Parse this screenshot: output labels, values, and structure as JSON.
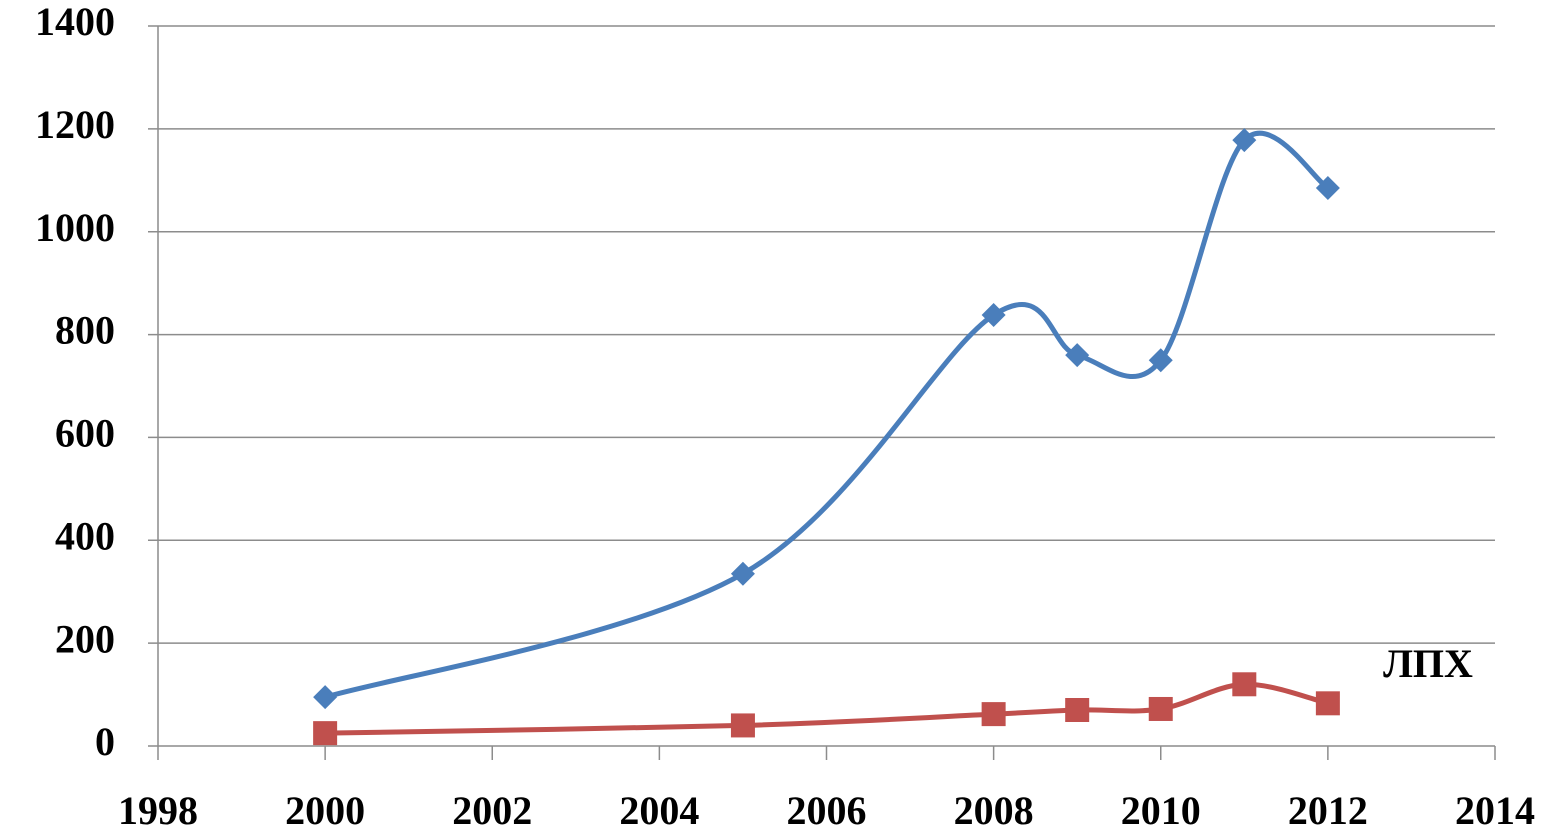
{
  "chart_data": {
    "type": "line",
    "x": [
      2000,
      2005,
      2008,
      2009,
      2010,
      2011,
      2012
    ],
    "series": [
      {
        "color": "#4a7ebb",
        "marker": "diamond",
        "values": [
          95,
          335,
          838,
          760,
          750,
          1178,
          1085
        ]
      },
      {
        "name": "ЛПХ",
        "color": "#c0504d",
        "marker": "square",
        "values": [
          25,
          40,
          62,
          70,
          72,
          120,
          83
        ]
      }
    ],
    "xlim": [
      1998,
      2014
    ],
    "xticks": [
      1998,
      2000,
      2002,
      2004,
      2006,
      2008,
      2010,
      2012,
      2014
    ],
    "ylim": [
      0,
      1400
    ],
    "yticks": [
      0,
      200,
      400,
      600,
      800,
      1000,
      1200,
      1400
    ],
    "grid": true,
    "smooth": true
  }
}
